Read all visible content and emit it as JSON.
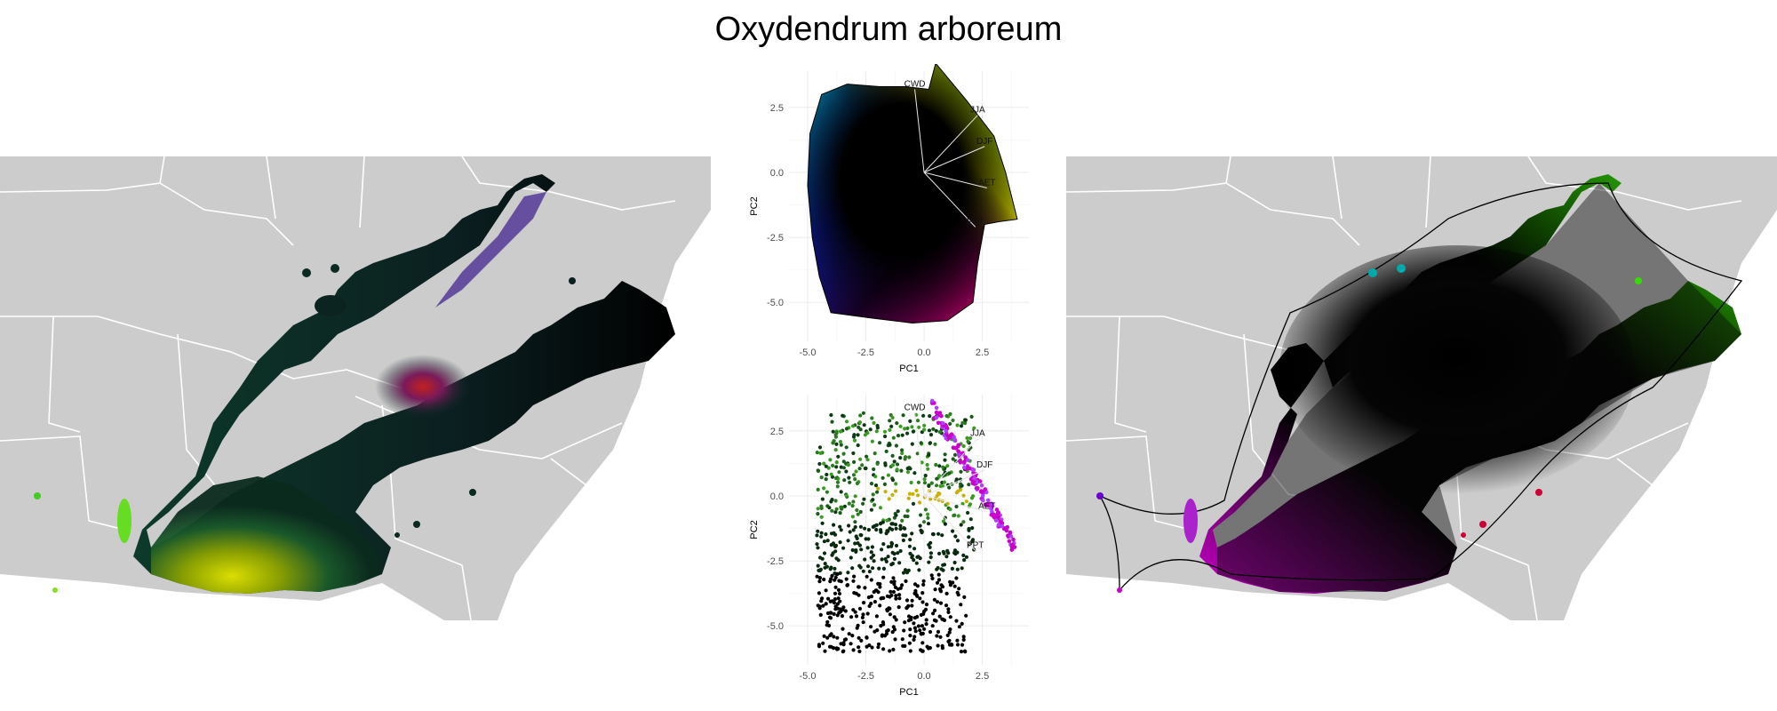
{
  "title": "Oxydendrum arboreum",
  "chart_data": [
    {
      "type": "map",
      "panel": "left",
      "description_key": "range-map-colored-by-climate-pc-space",
      "base_color": "#cccccc",
      "state_line_color": "#ffffff"
    },
    {
      "type": "scatter",
      "panel": "pca-top",
      "xlabel": "PC1",
      "ylabel": "PC2",
      "xticks": [
        -5.0,
        -2.5,
        0.0,
        2.5
      ],
      "yticks": [
        2.5,
        0.0,
        -2.5,
        -5.0
      ],
      "xlim": [
        -5.8,
        4.5
      ],
      "ylim": [
        -6.5,
        3.9
      ],
      "grid": true,
      "vectors": [
        {
          "label": "CWD",
          "x": -0.4,
          "y": 3.2
        },
        {
          "label": "JJA",
          "x": 2.3,
          "y": 2.2
        },
        {
          "label": "DJF",
          "x": 2.6,
          "y": 1.0
        },
        {
          "label": "AET",
          "x": 2.7,
          "y": -0.6
        },
        {
          "label": "PPT",
          "x": 2.2,
          "y": -2.1
        }
      ]
    },
    {
      "type": "scatter",
      "panel": "pca-bottom",
      "xlabel": "PC1",
      "ylabel": "PC2",
      "xticks": [
        -5.0,
        -2.5,
        0.0,
        2.5
      ],
      "yticks": [
        2.5,
        0.0,
        -2.5,
        -5.0
      ],
      "xlim": [
        -5.8,
        4.5
      ],
      "ylim": [
        -6.5,
        3.9
      ],
      "grid": true,
      "vectors": [
        {
          "label": "CWD",
          "x": -0.4,
          "y": 3.2
        },
        {
          "label": "JJA",
          "x": 2.3,
          "y": 2.2
        },
        {
          "label": "DJF",
          "x": 2.6,
          "y": 1.0
        },
        {
          "label": "AET",
          "x": 2.7,
          "y": -0.6
        },
        {
          "label": "PPT",
          "x": 2.2,
          "y": -2.1
        }
      ]
    },
    {
      "type": "map",
      "panel": "right",
      "description_key": "range-map-colored-by-geographic-position-with-hull",
      "base_color": "#cccccc",
      "state_line_color": "#ffffff"
    }
  ]
}
